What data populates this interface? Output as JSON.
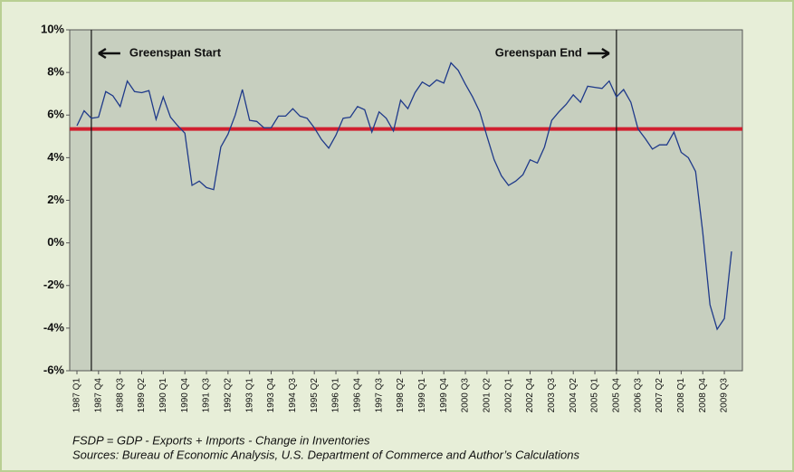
{
  "chart_data": {
    "type": "line",
    "categories": [
      "1987 Q1",
      null,
      null,
      "1987 Q4",
      null,
      null,
      "1988 Q3",
      null,
      null,
      "1989 Q2",
      null,
      null,
      "1990 Q1",
      null,
      null,
      "1990 Q4",
      null,
      null,
      "1991 Q3",
      null,
      null,
      "1992 Q2",
      null,
      null,
      "1993 Q1",
      null,
      null,
      "1993 Q4",
      null,
      null,
      "1994 Q3",
      null,
      null,
      "1995 Q2",
      null,
      null,
      "1996 Q1",
      null,
      null,
      "1996 Q4",
      null,
      null,
      "1997 Q3",
      null,
      null,
      "1998 Q2",
      null,
      null,
      "1999 Q1",
      null,
      null,
      "1999 Q4",
      null,
      null,
      "2000 Q3",
      null,
      null,
      "2001 Q2",
      null,
      null,
      "2002 Q1",
      null,
      null,
      "2002 Q4",
      null,
      null,
      "2003 Q3",
      null,
      null,
      "2004 Q2",
      null,
      null,
      "2005 Q1",
      null,
      null,
      "2005 Q4",
      null,
      null,
      "2006 Q3",
      null,
      null,
      "2007 Q2",
      null,
      null,
      "2008 Q1",
      null,
      null,
      "2008 Q4",
      null,
      null,
      "2009 Q3",
      null
    ],
    "series": [
      {
        "color": "#1f3a8a",
        "values": [
          5.5,
          6.2,
          5.85,
          5.9,
          7.1,
          6.9,
          6.4,
          7.6,
          7.1,
          7.05,
          7.15,
          5.8,
          6.85,
          5.9,
          5.5,
          5.15,
          2.7,
          2.9,
          2.6,
          2.5,
          4.5,
          5.1,
          6.0,
          7.2,
          5.75,
          5.7,
          5.4,
          5.4,
          5.95,
          5.95,
          6.3,
          5.95,
          5.85,
          5.4,
          4.85,
          4.45,
          5.05,
          5.85,
          5.9,
          6.4,
          6.25,
          5.2,
          6.15,
          5.85,
          5.25,
          6.7,
          6.3,
          7.05,
          7.55,
          7.35,
          7.65,
          7.5,
          8.45,
          8.1,
          7.45,
          6.85,
          6.15,
          5.0,
          3.9,
          3.15,
          2.7,
          2.9,
          3.2,
          3.9,
          3.75,
          4.5,
          5.75,
          6.15,
          6.5,
          6.95,
          6.6,
          7.35,
          7.3,
          7.25,
          7.6,
          6.85,
          7.2,
          6.6,
          5.35,
          4.9,
          4.4,
          4.6,
          4.6,
          5.2,
          4.25,
          4.0,
          3.35,
          0.5,
          -2.9,
          -4.05,
          -3.55,
          -0.4
        ]
      }
    ],
    "reference_line": {
      "value": 5.35,
      "color": "#d11f2f"
    },
    "annotations": [
      {
        "text": "Greenspan Start",
        "x": 2,
        "arrow": "left"
      },
      {
        "text": "Greenspan End",
        "x": 75,
        "arrow": "right"
      }
    ],
    "ylim": [
      -6,
      10
    ],
    "yticks": [
      {
        "value": -6,
        "label": "-6%"
      },
      {
        "value": -4,
        "label": "-4%"
      },
      {
        "value": -2,
        "label": "-2%"
      },
      {
        "value": 0,
        "label": "0%"
      },
      {
        "value": 2,
        "label": "2%"
      },
      {
        "value": 4,
        "label": "4%"
      },
      {
        "value": 6,
        "label": "6%"
      },
      {
        "value": 8,
        "label": "8%"
      },
      {
        "value": 10,
        "label": "10%"
      }
    ],
    "grid": false,
    "notes": [
      "FSDP = GDP - Exports + Imports - Change in Inventories",
      "Sources: Bureau of Economic Analysis, U.S. Department of Commerce and Author’s Calculations"
    ]
  }
}
